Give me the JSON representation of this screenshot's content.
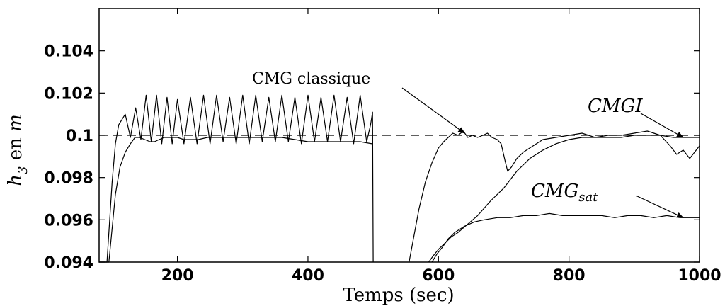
{
  "chart_data": {
    "type": "line",
    "title": "",
    "xlabel": "Temps (sec)",
    "ylabel": {
      "main": "h",
      "sub": "3",
      "rest": " en ",
      "unit": "m"
    },
    "xlim": [
      80,
      1000
    ],
    "ylim": [
      0.094,
      0.106
    ],
    "xticks": [
      200,
      400,
      600,
      800,
      1000
    ],
    "xtick_labels": [
      "200",
      "400",
      "600",
      "800",
      "1000"
    ],
    "yticks": [
      0.094,
      0.096,
      0.098,
      0.1,
      0.102,
      0.104
    ],
    "ytick_labels": [
      "0.094",
      "0.096",
      "0.098",
      "0.1",
      "0.102",
      "0.104"
    ],
    "grid": false,
    "reference_line": {
      "y": 0.1,
      "style": "dashed"
    },
    "annotations": [
      {
        "id": "cmg-classique",
        "text": "CMG classique",
        "arrow_to": [
          640,
          0.1001
        ]
      },
      {
        "id": "cmgi",
        "text": "CMGI",
        "arrow_to": [
          975,
          0.0999
        ]
      },
      {
        "id": "cmg-sat",
        "text": "CMG",
        "sub": "sat",
        "arrow_to": [
          975,
          0.0961
        ]
      }
    ],
    "series": [
      {
        "x": [
          80,
          95,
          105,
          112,
          120,
          128,
          135,
          142,
          150,
          158,
          165,
          172,
          180,
          190,
          200,
          210,
          220,
          232,
          246,
          258,
          270,
          285,
          300,
          320,
          340,
          360,
          380,
          400,
          420,
          440,
          460,
          480,
          498
        ],
        "values": [
          0.094,
          0.094,
          0.0972,
          0.0985,
          0.0992,
          0.0996,
          0.0999,
          0.0999,
          0.0998,
          0.0997,
          0.0997,
          0.0998,
          0.0999,
          0.0999,
          0.0999,
          0.0998,
          0.0998,
          0.0998,
          0.0999,
          0.0999,
          0.0999,
          0.0999,
          0.0999,
          0.0999,
          0.0999,
          0.0999,
          0.0998,
          0.0997,
          0.0997,
          0.0997,
          0.0997,
          0.0997,
          0.0996
        ]
      },
      {
        "x": [
          80,
          92,
          100,
          105,
          110,
          120,
          128,
          136,
          144,
          152,
          160,
          168,
          176,
          184,
          192,
          200,
          210,
          220,
          230,
          240,
          250,
          260,
          270,
          280,
          290,
          300,
          310,
          320,
          330,
          340,
          350,
          360,
          370,
          380,
          390,
          400,
          410,
          420,
          430,
          440,
          450,
          460,
          470,
          480,
          490,
          496,
          499,
          500
        ],
        "values": [
          0.094,
          0.094,
          0.0978,
          0.0996,
          0.1005,
          0.101,
          0.0999,
          0.1013,
          0.0998,
          0.1019,
          0.0997,
          0.1019,
          0.0996,
          0.1018,
          0.0996,
          0.1017,
          0.0996,
          0.1018,
          0.0996,
          0.1019,
          0.0996,
          0.1019,
          0.0997,
          0.1018,
          0.0996,
          0.1019,
          0.0996,
          0.1019,
          0.0997,
          0.1018,
          0.0997,
          0.1019,
          0.0997,
          0.1018,
          0.0996,
          0.1019,
          0.0997,
          0.1018,
          0.0997,
          0.1019,
          0.0997,
          0.1018,
          0.0996,
          0.1019,
          0.0997,
          0.1005,
          0.1011,
          0.094
        ]
      },
      {
        "x": [
          555,
          570,
          580,
          590,
          600,
          608,
          615,
          622,
          630,
          638,
          645,
          652,
          660,
          668,
          675,
          682,
          690,
          696,
          702,
          706,
          712,
          720,
          730,
          745,
          760,
          780,
          800,
          820,
          840,
          860,
          880,
          900,
          920,
          940,
          955,
          965,
          975,
          985,
          1000
        ],
        "values": [
          0.094,
          0.0965,
          0.0978,
          0.0987,
          0.0994,
          0.0997,
          0.0999,
          0.1001,
          0.1,
          0.1002,
          0.0999,
          0.1,
          0.0999,
          0.1,
          0.1001,
          0.0999,
          0.0998,
          0.0996,
          0.0988,
          0.0983,
          0.0985,
          0.0989,
          0.0992,
          0.0995,
          0.0998,
          0.0999,
          0.1,
          0.1001,
          0.0999,
          0.1,
          0.1,
          0.1001,
          0.1002,
          0.1,
          0.0995,
          0.0991,
          0.0993,
          0.0989,
          0.0995
        ]
      },
      {
        "x": [
          585,
          592,
          600,
          610,
          620,
          630,
          645,
          660,
          680,
          700,
          720,
          740,
          760,
          780,
          800,
          820,
          840,
          860,
          880,
          900,
          920,
          940,
          960,
          980,
          1000
        ],
        "values": [
          0.094,
          0.0943,
          0.0946,
          0.0949,
          0.0952,
          0.0954,
          0.0958,
          0.0962,
          0.0969,
          0.0975,
          0.0983,
          0.0989,
          0.0993,
          0.0996,
          0.0998,
          0.0999,
          0.0999,
          0.0999,
          0.0999,
          0.1,
          0.1,
          0.1,
          0.0999,
          0.0999,
          0.0999
        ]
      },
      {
        "x": [
          590,
          598,
          606,
          615,
          625,
          640,
          655,
          670,
          690,
          710,
          730,
          750,
          770,
          790,
          810,
          830,
          850,
          870,
          890,
          910,
          930,
          950,
          970,
          985,
          1000
        ],
        "values": [
          0.094,
          0.0944,
          0.0947,
          0.0951,
          0.0954,
          0.0957,
          0.0959,
          0.096,
          0.0961,
          0.0961,
          0.0962,
          0.0962,
          0.0963,
          0.0962,
          0.0962,
          0.0962,
          0.0962,
          0.0961,
          0.0962,
          0.0962,
          0.0961,
          0.0962,
          0.0961,
          0.0961,
          0.0961
        ]
      }
    ]
  }
}
